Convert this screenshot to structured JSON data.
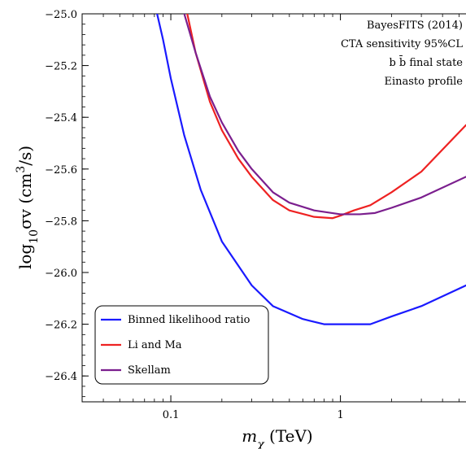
{
  "chart_data": {
    "type": "line",
    "xlabel_var": "m",
    "xlabel_sub": "χ",
    "xlabel_unit": " (TeV)",
    "ylabel_pre": "log",
    "ylabel_sub": "10",
    "ylabel_mid": "σv (cm",
    "ylabel_sup": "3",
    "ylabel_post": "/s)",
    "xscale": "log",
    "xlim": [
      0.03,
      5.5
    ],
    "ylim": [
      -26.5,
      -25.0
    ],
    "x_ticks": [
      {
        "value": 0.1,
        "label": "0.1"
      },
      {
        "value": 1,
        "label": "1"
      }
    ],
    "y_ticks": [
      {
        "value": -25.0,
        "label": "−25.0"
      },
      {
        "value": -25.2,
        "label": "−25.2"
      },
      {
        "value": -25.4,
        "label": "−25.4"
      },
      {
        "value": -25.6,
        "label": "−25.6"
      },
      {
        "value": -25.8,
        "label": "−25.8"
      },
      {
        "value": -26.0,
        "label": "−26.0"
      },
      {
        "value": -26.2,
        "label": "−26.2"
      },
      {
        "value": -26.4,
        "label": "−26.4"
      }
    ],
    "annotations": [
      "BayesFITS (2014)",
      "CTA sensitivity 95%CL",
      "b b̄ final state",
      "Einasto profile"
    ],
    "legend_position": "bottom-left",
    "series": [
      {
        "name": "Binned likelihood ratio",
        "color": "#1a1aff",
        "x": [
          0.083,
          0.09,
          0.1,
          0.12,
          0.15,
          0.2,
          0.3,
          0.4,
          0.6,
          0.8,
          1.0,
          1.5,
          2.0,
          3.0,
          5.5
        ],
        "y": [
          -25.0,
          -25.1,
          -25.25,
          -25.47,
          -25.68,
          -25.88,
          -26.05,
          -26.13,
          -26.18,
          -26.2,
          -26.2,
          -26.2,
          -26.17,
          -26.13,
          -26.05
        ]
      },
      {
        "name": "Li and Ma",
        "color": "#ee2222",
        "x": [
          0.125,
          0.14,
          0.17,
          0.2,
          0.25,
          0.3,
          0.4,
          0.5,
          0.7,
          0.9,
          1.0,
          1.2,
          1.5,
          2.0,
          3.0,
          5.5
        ],
        "y": [
          -25.0,
          -25.15,
          -25.34,
          -25.45,
          -25.56,
          -25.63,
          -25.72,
          -25.76,
          -25.785,
          -25.79,
          -25.78,
          -25.76,
          -25.74,
          -25.69,
          -25.61,
          -25.43
        ]
      },
      {
        "name": "Skellam",
        "color": "#7b1f8e",
        "x": [
          0.12,
          0.14,
          0.17,
          0.2,
          0.25,
          0.3,
          0.4,
          0.5,
          0.7,
          1.0,
          1.3,
          1.6,
          2.0,
          3.0,
          5.5
        ],
        "y": [
          -25.0,
          -25.15,
          -25.32,
          -25.42,
          -25.53,
          -25.6,
          -25.69,
          -25.73,
          -25.76,
          -25.775,
          -25.775,
          -25.77,
          -25.75,
          -25.71,
          -25.63
        ]
      }
    ]
  }
}
